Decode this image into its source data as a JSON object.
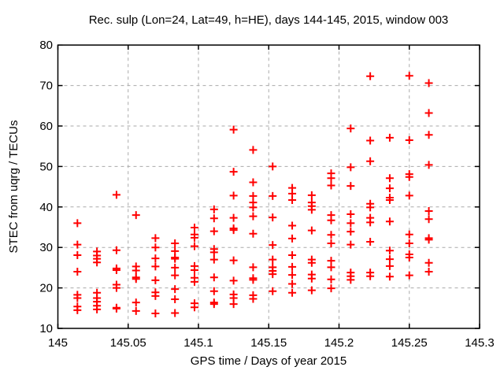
{
  "window": {
    "background": "#ffffff"
  },
  "chart_data": {
    "type": "scatter",
    "title": "Rec. sulp (Lon=24, Lat=49, h=HE), days 144-145, 2015, window 003",
    "xlabel": "GPS time / Days of year 2015",
    "ylabel": "STEC from uqrg / TECUs",
    "xlim": [
      145,
      145.3
    ],
    "ylim": [
      10,
      80
    ],
    "xticks": {
      "values": [
        145,
        145.05,
        145.1,
        145.15,
        145.2,
        145.25,
        145.3
      ],
      "labels": [
        "145",
        "145.05",
        "145.1",
        "145.15",
        "145.2",
        "145.25",
        "145.3"
      ]
    },
    "yticks": {
      "values": [
        10,
        20,
        30,
        40,
        50,
        60,
        70,
        80
      ],
      "labels": [
        "10",
        "20",
        "30",
        "40",
        "50",
        "60",
        "70",
        "80"
      ]
    },
    "grid": {
      "show": true,
      "style": "dashed",
      "color": "#aaaaaa"
    },
    "axis_color": "#000000",
    "legend": "none",
    "marker": {
      "shape": "plus",
      "color": "#ff0000",
      "size": 10,
      "stroke_width": 2
    },
    "points": [
      [
        145.0139,
        36.0
      ],
      [
        145.0139,
        30.7
      ],
      [
        145.0139,
        28.1
      ],
      [
        145.0139,
        24.0
      ],
      [
        145.0139,
        18.3
      ],
      [
        145.0139,
        17.5
      ],
      [
        145.0139,
        15.4
      ],
      [
        145.0139,
        14.5
      ],
      [
        145.0278,
        29.0
      ],
      [
        145.0278,
        28.0
      ],
      [
        145.0278,
        27.2
      ],
      [
        145.0278,
        26.3
      ],
      [
        145.0278,
        18.8
      ],
      [
        145.0278,
        17.5
      ],
      [
        145.0278,
        16.6
      ],
      [
        145.0278,
        15.6
      ],
      [
        145.0278,
        14.7
      ],
      [
        145.0417,
        43.0
      ],
      [
        145.0417,
        29.3
      ],
      [
        145.0417,
        24.8
      ],
      [
        145.0417,
        24.4
      ],
      [
        145.0417,
        20.8
      ],
      [
        145.0417,
        20.0
      ],
      [
        145.0417,
        15.1
      ],
      [
        145.0417,
        14.9
      ],
      [
        145.0556,
        38.0
      ],
      [
        145.0556,
        25.3
      ],
      [
        145.0556,
        24.3
      ],
      [
        145.0556,
        22.6
      ],
      [
        145.0556,
        22.2
      ],
      [
        145.0556,
        16.4
      ],
      [
        145.0556,
        14.3
      ],
      [
        145.0694,
        32.3
      ],
      [
        145.0694,
        30.0
      ],
      [
        145.0694,
        27.3
      ],
      [
        145.0694,
        25.3
      ],
      [
        145.0694,
        21.9
      ],
      [
        145.0694,
        18.9
      ],
      [
        145.0694,
        18.0
      ],
      [
        145.0694,
        13.7
      ],
      [
        145.0833,
        31.0
      ],
      [
        145.0833,
        29.1
      ],
      [
        145.0833,
        27.5
      ],
      [
        145.0833,
        27.2
      ],
      [
        145.0833,
        25.0
      ],
      [
        145.0833,
        23.1
      ],
      [
        145.0833,
        19.7
      ],
      [
        145.0833,
        17.2
      ],
      [
        145.0833,
        13.8
      ],
      [
        145.0972,
        34.9
      ],
      [
        145.0972,
        33.2
      ],
      [
        145.0972,
        32.4
      ],
      [
        145.0972,
        30.3
      ],
      [
        145.0972,
        25.4
      ],
      [
        145.0972,
        24.4
      ],
      [
        145.0972,
        22.5
      ],
      [
        145.0972,
        21.5
      ],
      [
        145.0972,
        16.2
      ],
      [
        145.0972,
        15.2
      ],
      [
        145.1111,
        39.4
      ],
      [
        145.1111,
        37.2
      ],
      [
        145.1111,
        34.0
      ],
      [
        145.1111,
        29.6
      ],
      [
        145.1111,
        28.8
      ],
      [
        145.1111,
        27.0
      ],
      [
        145.1111,
        22.6
      ],
      [
        145.1111,
        19.2
      ],
      [
        145.1111,
        16.4
      ],
      [
        145.1111,
        16.0
      ],
      [
        145.125,
        59.1
      ],
      [
        145.125,
        48.7
      ],
      [
        145.125,
        42.8
      ],
      [
        145.125,
        37.3
      ],
      [
        145.125,
        34.7
      ],
      [
        145.125,
        34.3
      ],
      [
        145.125,
        26.8
      ],
      [
        145.125,
        21.8
      ],
      [
        145.125,
        18.4
      ],
      [
        145.125,
        17.5
      ],
      [
        145.125,
        16.0
      ],
      [
        145.1389,
        54.1
      ],
      [
        145.1389,
        46.1
      ],
      [
        145.1389,
        42.7
      ],
      [
        145.1389,
        41.1
      ],
      [
        145.1389,
        39.9
      ],
      [
        145.1389,
        37.7
      ],
      [
        145.1389,
        33.4
      ],
      [
        145.1389,
        25.1
      ],
      [
        145.1389,
        22.4
      ],
      [
        145.1389,
        22.0
      ],
      [
        145.1389,
        18.2
      ],
      [
        145.1389,
        17.3
      ],
      [
        145.1528,
        50.0
      ],
      [
        145.1528,
        42.7
      ],
      [
        145.1528,
        37.4
      ],
      [
        145.1528,
        30.6
      ],
      [
        145.1528,
        27.0
      ],
      [
        145.1528,
        25.1
      ],
      [
        145.1528,
        24.2
      ],
      [
        145.1528,
        23.4
      ],
      [
        145.1528,
        19.2
      ],
      [
        145.1667,
        44.7
      ],
      [
        145.1667,
        43.3
      ],
      [
        145.1667,
        41.7
      ],
      [
        145.1667,
        35.4
      ],
      [
        145.1667,
        32.2
      ],
      [
        145.1667,
        28.1
      ],
      [
        145.1667,
        25.2
      ],
      [
        145.1667,
        23.2
      ],
      [
        145.1667,
        21.0
      ],
      [
        145.1667,
        18.8
      ],
      [
        145.1806,
        42.9
      ],
      [
        145.1806,
        41.1
      ],
      [
        145.1806,
        40.2
      ],
      [
        145.1806,
        39.3
      ],
      [
        145.1806,
        34.2
      ],
      [
        145.1806,
        27.0
      ],
      [
        145.1806,
        26.2
      ],
      [
        145.1806,
        23.3
      ],
      [
        145.1806,
        22.3
      ],
      [
        145.1806,
        19.4
      ],
      [
        145.1944,
        48.3
      ],
      [
        145.1944,
        47.1
      ],
      [
        145.1944,
        45.3
      ],
      [
        145.1944,
        38.0
      ],
      [
        145.1944,
        36.7
      ],
      [
        145.1944,
        33.1
      ],
      [
        145.1944,
        31.0
      ],
      [
        145.1944,
        26.7
      ],
      [
        145.1944,
        25.1
      ],
      [
        145.1944,
        22.1
      ],
      [
        145.1944,
        19.9
      ],
      [
        145.2083,
        59.4
      ],
      [
        145.2083,
        49.8
      ],
      [
        145.2083,
        45.2
      ],
      [
        145.2083,
        38.2
      ],
      [
        145.2083,
        36.0
      ],
      [
        145.2083,
        33.9
      ],
      [
        145.2083,
        30.7
      ],
      [
        145.2083,
        23.8
      ],
      [
        145.2083,
        22.9
      ],
      [
        145.2083,
        22.0
      ],
      [
        145.2222,
        72.3
      ],
      [
        145.2222,
        56.4
      ],
      [
        145.2222,
        51.3
      ],
      [
        145.2222,
        40.8
      ],
      [
        145.2222,
        39.9
      ],
      [
        145.2222,
        37.3
      ],
      [
        145.2222,
        36.2
      ],
      [
        145.2222,
        31.4
      ],
      [
        145.2222,
        23.8
      ],
      [
        145.2222,
        22.9
      ],
      [
        145.2361,
        57.1
      ],
      [
        145.2361,
        47.1
      ],
      [
        145.2361,
        44.6
      ],
      [
        145.2361,
        42.3
      ],
      [
        145.2361,
        41.7
      ],
      [
        145.2361,
        36.4
      ],
      [
        145.2361,
        29.2
      ],
      [
        145.2361,
        27.1
      ],
      [
        145.2361,
        25.4
      ],
      [
        145.2361,
        22.8
      ],
      [
        145.25,
        72.4
      ],
      [
        145.25,
        56.5
      ],
      [
        145.25,
        48.1
      ],
      [
        145.25,
        47.4
      ],
      [
        145.25,
        42.8
      ],
      [
        145.25,
        33.2
      ],
      [
        145.25,
        31.0
      ],
      [
        145.25,
        28.3
      ],
      [
        145.25,
        27.5
      ],
      [
        145.25,
        23.1
      ],
      [
        145.2639,
        70.6
      ],
      [
        145.2639,
        63.2
      ],
      [
        145.2639,
        57.8
      ],
      [
        145.2639,
        50.4
      ],
      [
        145.2639,
        39.0
      ],
      [
        145.2639,
        37.0
      ],
      [
        145.2639,
        32.3
      ],
      [
        145.2639,
        31.9
      ],
      [
        145.2639,
        26.2
      ],
      [
        145.2639,
        24.0
      ]
    ]
  }
}
